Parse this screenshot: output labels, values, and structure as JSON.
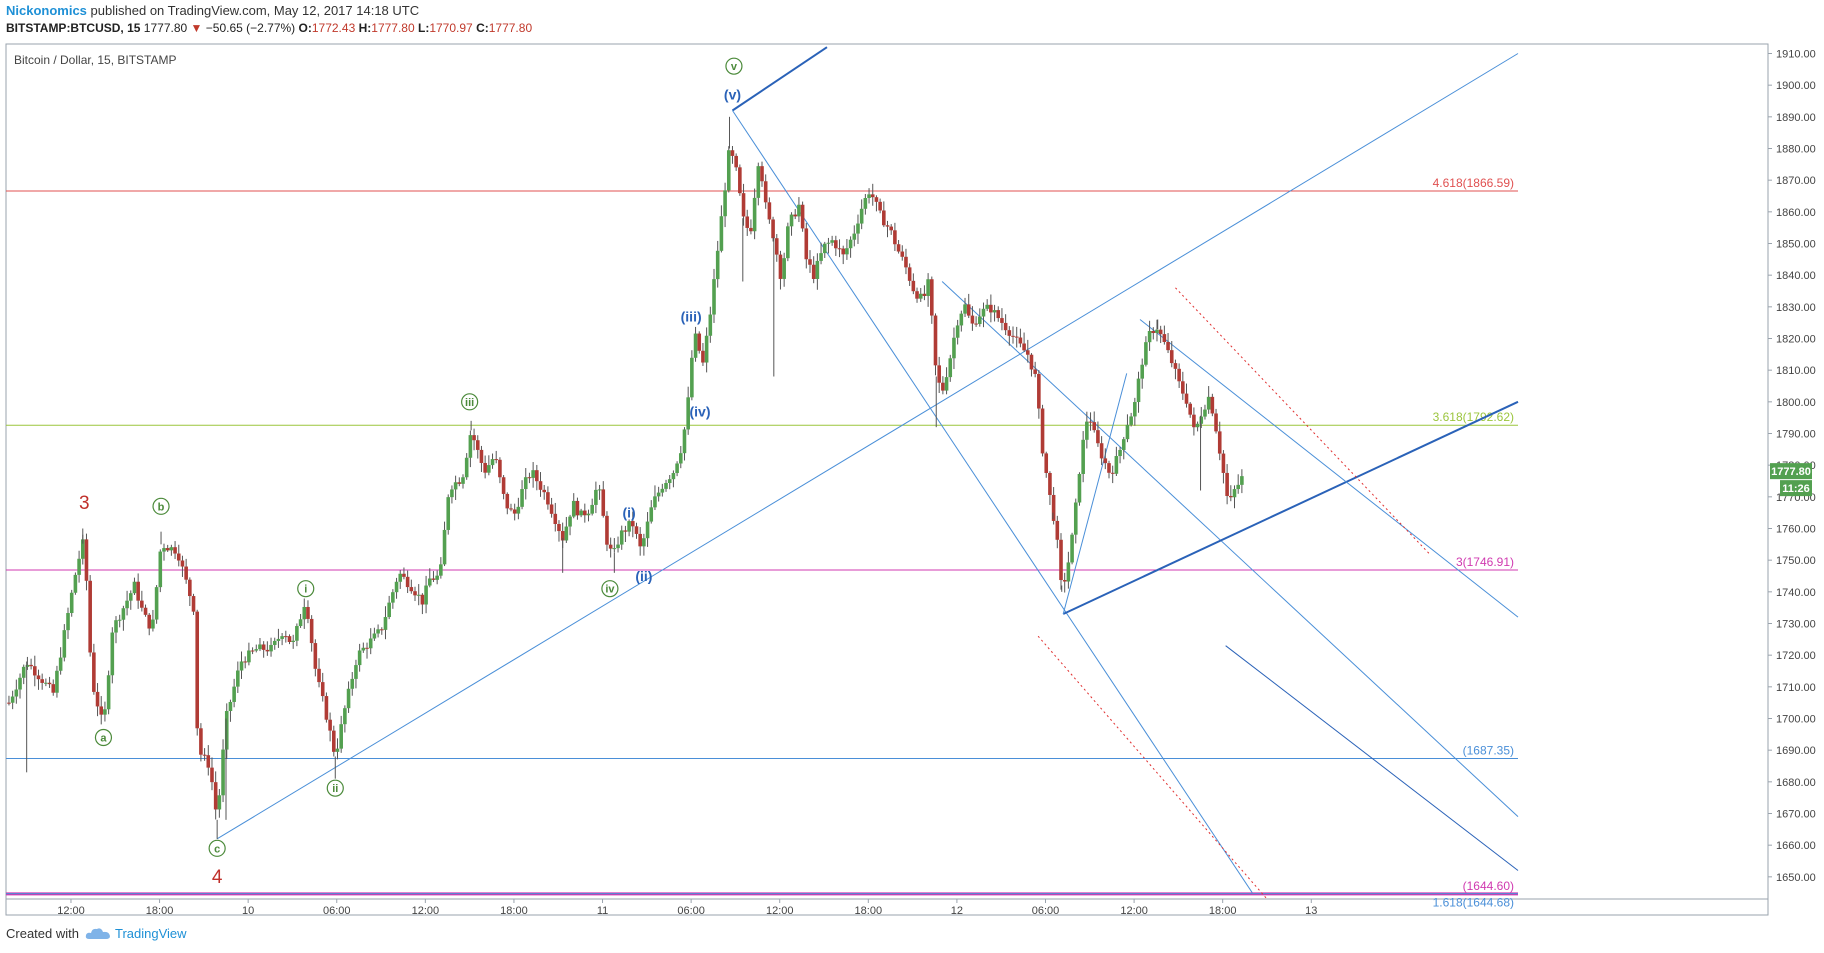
{
  "header": {
    "author": "Nickonomics",
    "published": "published on TradingView.com, May 12, 2017 14:18 UTC",
    "symbol": "BITSTAMP:BTCUSD, 15",
    "last": "1777.80",
    "change": "−50.65 (−2.77%)",
    "open": "1772.43",
    "high": "1777.80",
    "low": "1770.97",
    "close": "1777.80"
  },
  "footer": {
    "created_with": "Created with",
    "brand": "TradingView"
  },
  "colors": {
    "up": "#53a050",
    "down": "#b03b35",
    "wave_blue": "#2a62b8",
    "wave_green": "#4b8a3a",
    "wave_red": "#c0302b",
    "fib_red": "#e05050",
    "fib_green": "#9bc53d",
    "fib_magenta": "#d03ab0",
    "fib_blue": "#4a8fd8",
    "fib_purple": "#7e3fc2"
  },
  "chart_data": {
    "type": "candlestick",
    "title": "Bitcoin / Dollar, 15, BITSTAMP",
    "x_axis": {
      "unit": "hours since May 9 00:00 UTC",
      "range": [
        7.6,
        110
      ],
      "ticks": [
        {
          "x": 12,
          "label": "12:00"
        },
        {
          "x": 18,
          "label": "18:00"
        },
        {
          "x": 24,
          "label": "10"
        },
        {
          "x": 30,
          "label": "06:00"
        },
        {
          "x": 36,
          "label": "12:00"
        },
        {
          "x": 42,
          "label": "18:00"
        },
        {
          "x": 48,
          "label": "11"
        },
        {
          "x": 54,
          "label": "06:00"
        },
        {
          "x": 60,
          "label": "12:00"
        },
        {
          "x": 66,
          "label": "18:00"
        },
        {
          "x": 72,
          "label": "12"
        },
        {
          "x": 78,
          "label": "06:00"
        },
        {
          "x": 84,
          "label": "12:00"
        },
        {
          "x": 90,
          "label": "18:00"
        },
        {
          "x": 96,
          "label": "13"
        }
      ]
    },
    "y_axis": {
      "range": [
        1643,
        1913
      ],
      "ticks": [
        1650,
        1660,
        1670,
        1680,
        1690,
        1700,
        1710,
        1720,
        1730,
        1740,
        1750,
        1760,
        1770,
        1780,
        1790,
        1800,
        1810,
        1820,
        1830,
        1840,
        1850,
        1860,
        1870,
        1880,
        1890,
        1900,
        1910
      ]
    },
    "price_tag": {
      "value": 1777.8,
      "label": "1777.80",
      "countdown": "11:26"
    },
    "anchors": [
      [
        7.8,
        1705
      ],
      [
        9.0,
        1718
      ],
      [
        10.8,
        1708
      ],
      [
        12.4,
        1748
      ],
      [
        12.9,
        1757
      ],
      [
        13.4,
        1712
      ],
      [
        14.2,
        1697
      ],
      [
        14.8,
        1728
      ],
      [
        16.3,
        1742
      ],
      [
        16.9,
        1733
      ],
      [
        17.5,
        1728
      ],
      [
        18.1,
        1755
      ],
      [
        19.2,
        1753
      ],
      [
        20.3,
        1735
      ],
      [
        20.6,
        1690
      ],
      [
        21.4,
        1685
      ],
      [
        21.9,
        1668
      ],
      [
        22.5,
        1700
      ],
      [
        23.5,
        1718
      ],
      [
        24.6,
        1722
      ],
      [
        25.6,
        1722
      ],
      [
        26.4,
        1728
      ],
      [
        27.0,
        1723
      ],
      [
        27.9,
        1738
      ],
      [
        28.6,
        1714
      ],
      [
        29.2,
        1703
      ],
      [
        29.9,
        1688
      ],
      [
        30.5,
        1702
      ],
      [
        31.4,
        1720
      ],
      [
        33.0,
        1728
      ],
      [
        34.2,
        1746
      ],
      [
        35.0,
        1742
      ],
      [
        35.8,
        1737
      ],
      [
        36.3,
        1744
      ],
      [
        37.0,
        1745
      ],
      [
        37.6,
        1773
      ],
      [
        38.5,
        1776
      ],
      [
        39.1,
        1791
      ],
      [
        39.5,
        1785
      ],
      [
        40.0,
        1778
      ],
      [
        40.7,
        1783
      ],
      [
        41.4,
        1768
      ],
      [
        42.0,
        1764
      ],
      [
        42.7,
        1774
      ],
      [
        43.2,
        1778
      ],
      [
        44.2,
        1770
      ],
      [
        45.3,
        1757
      ],
      [
        46.0,
        1768
      ],
      [
        46.5,
        1764
      ],
      [
        47.1,
        1766
      ],
      [
        47.7,
        1774
      ],
      [
        48.3,
        1756
      ],
      [
        48.7,
        1751
      ],
      [
        49.2,
        1758
      ],
      [
        50.0,
        1762
      ],
      [
        50.6,
        1753
      ],
      [
        51.4,
        1768
      ],
      [
        52.1,
        1774
      ],
      [
        52.8,
        1778
      ],
      [
        53.3,
        1785
      ],
      [
        53.7,
        1795
      ],
      [
        54.2,
        1822
      ],
      [
        54.8,
        1812
      ],
      [
        55.3,
        1828
      ],
      [
        56.0,
        1856
      ],
      [
        56.6,
        1880
      ],
      [
        57.1,
        1872
      ],
      [
        57.5,
        1858
      ],
      [
        58.0,
        1853
      ],
      [
        58.6,
        1878
      ],
      [
        59.1,
        1860
      ],
      [
        59.6,
        1852
      ],
      [
        60.1,
        1839
      ],
      [
        60.6,
        1856
      ],
      [
        61.3,
        1862
      ],
      [
        61.8,
        1845
      ],
      [
        62.3,
        1840
      ],
      [
        63.0,
        1849
      ],
      [
        63.6,
        1851
      ],
      [
        64.3,
        1846
      ],
      [
        65.0,
        1853
      ],
      [
        65.6,
        1862
      ],
      [
        66.1,
        1867
      ],
      [
        66.8,
        1859
      ],
      [
        67.5,
        1854
      ],
      [
        68.0,
        1848
      ],
      [
        68.5,
        1843
      ],
      [
        69.1,
        1835
      ],
      [
        69.7,
        1832
      ],
      [
        70.1,
        1838
      ],
      [
        70.6,
        1808
      ],
      [
        71.0,
        1803
      ],
      [
        71.5,
        1813
      ],
      [
        72.0,
        1825
      ],
      [
        72.5,
        1831
      ],
      [
        73.0,
        1824
      ],
      [
        73.6,
        1828
      ],
      [
        74.2,
        1830
      ],
      [
        74.9,
        1826
      ],
      [
        75.6,
        1822
      ],
      [
        76.2,
        1818
      ],
      [
        76.8,
        1815
      ],
      [
        77.3,
        1808
      ],
      [
        77.8,
        1785
      ],
      [
        78.3,
        1770
      ],
      [
        78.7,
        1760
      ],
      [
        79.1,
        1740
      ],
      [
        79.5,
        1748
      ],
      [
        79.9,
        1760
      ],
      [
        80.4,
        1783
      ],
      [
        80.9,
        1797
      ],
      [
        81.4,
        1788
      ],
      [
        81.9,
        1782
      ],
      [
        82.4,
        1777
      ],
      [
        83.0,
        1784
      ],
      [
        83.5,
        1793
      ],
      [
        84.0,
        1798
      ],
      [
        84.5,
        1812
      ],
      [
        85.0,
        1821
      ],
      [
        85.5,
        1824
      ],
      [
        86.0,
        1819
      ],
      [
        86.6,
        1812
      ],
      [
        87.1,
        1805
      ],
      [
        87.6,
        1800
      ],
      [
        88.1,
        1790
      ],
      [
        88.6,
        1797
      ],
      [
        89.1,
        1802
      ],
      [
        89.5,
        1793
      ],
      [
        90.0,
        1779
      ],
      [
        90.4,
        1767
      ],
      [
        90.8,
        1772
      ],
      [
        91.2,
        1775
      ],
      [
        91.5,
        1777.8
      ]
    ],
    "wicks": [
      {
        "x": 9.0,
        "low": 1683
      },
      {
        "x": 12.8,
        "high": 1760
      },
      {
        "x": 14.2,
        "low": 1697
      },
      {
        "x": 18.1,
        "high": 1759
      },
      {
        "x": 21.9,
        "low": 1662
      },
      {
        "x": 22.5,
        "low": 1668
      },
      {
        "x": 29.9,
        "low": 1681
      },
      {
        "x": 39.1,
        "high": 1794
      },
      {
        "x": 45.3,
        "low": 1746
      },
      {
        "x": 48.8,
        "low": 1746
      },
      {
        "x": 56.6,
        "high": 1890
      },
      {
        "x": 57.5,
        "low": 1838
      },
      {
        "x": 59.6,
        "low": 1808
      },
      {
        "x": 70.6,
        "low": 1792
      },
      {
        "x": 78.5,
        "low": 1763
      },
      {
        "x": 79.1,
        "low": 1742
      },
      {
        "x": 88.5,
        "low": 1772
      },
      {
        "x": 85.6,
        "high": 1826
      }
    ],
    "horizontal_levels": [
      {
        "price": 1866.59,
        "label": "4.618(1866.59)",
        "color": "#e05050"
      },
      {
        "price": 1792.62,
        "label": "3.618(1792.62)",
        "color": "#9bc53d"
      },
      {
        "price": 1746.91,
        "label": "3(1746.91)",
        "color": "#d03ab0"
      },
      {
        "price": 1687.35,
        "label": "(1687.35)",
        "color": "#4a8fd8"
      },
      {
        "price": 1644.6,
        "label": "(1644.60)",
        "color": "#d03ab0"
      },
      {
        "price": 1644.68,
        "label": "1.618(1644.68)",
        "color": "#4a8fd8"
      }
    ],
    "trend_lines": [
      {
        "from": [
          21.9,
          1662
        ],
        "to": [
          110,
          1910
        ],
        "color": "#4a8fd8",
        "width": 1
      },
      {
        "from": [
          56.8,
          1892
        ],
        "to": [
          63.2,
          1912
        ],
        "color": "#2a62b8",
        "width": 2
      },
      {
        "from": [
          56.8,
          1892
        ],
        "to": [
          92.0,
          1645
        ],
        "color": "#4a8fd8",
        "width": 1
      },
      {
        "from": [
          71.0,
          1838
        ],
        "to": [
          110,
          1669
        ],
        "color": "#4a8fd8",
        "width": 1
      },
      {
        "from": [
          79.2,
          1733
        ],
        "to": [
          110,
          1800
        ],
        "color": "#2a62b8",
        "width": 2
      },
      {
        "from": [
          79.2,
          1733
        ],
        "to": [
          83.5,
          1809
        ],
        "color": "#4a8fd8",
        "width": 1
      },
      {
        "from": [
          84.4,
          1826
        ],
        "to": [
          110,
          1732
        ],
        "color": "#4a8fd8",
        "width": 1
      },
      {
        "from": [
          90.2,
          1723
        ],
        "to": [
          110,
          1652
        ],
        "color": "#2a62b8",
        "width": 1
      }
    ],
    "dotted_lines": [
      {
        "from": [
          86.8,
          1836
        ],
        "to": [
          104,
          1752
        ],
        "color": "#e03030"
      },
      {
        "from": [
          77.5,
          1726
        ],
        "to": [
          93.0,
          1643
        ],
        "color": "#e03030"
      }
    ],
    "annotations": [
      {
        "x": 12.9,
        "y": 1768,
        "text": "3",
        "style": "red"
      },
      {
        "x": 18.1,
        "y": 1767,
        "text": "b",
        "style": "circle-green"
      },
      {
        "x": 14.2,
        "y": 1694,
        "text": "a",
        "style": "circle-green"
      },
      {
        "x": 21.9,
        "y": 1659,
        "text": "c",
        "style": "circle-green"
      },
      {
        "x": 21.9,
        "y": 1650,
        "text": "4",
        "style": "red"
      },
      {
        "x": 27.9,
        "y": 1741,
        "text": "i",
        "style": "circle-green"
      },
      {
        "x": 29.9,
        "y": 1678,
        "text": "ii",
        "style": "circle-green"
      },
      {
        "x": 39.0,
        "y": 1800,
        "text": "iii",
        "style": "circle-green"
      },
      {
        "x": 48.5,
        "y": 1741,
        "text": "iv",
        "style": "circle-green"
      },
      {
        "x": 56.9,
        "y": 1906,
        "text": "v",
        "style": "circle-green"
      },
      {
        "x": 56.8,
        "y": 1897,
        "text": "(v)",
        "style": "blue"
      },
      {
        "x": 54.0,
        "y": 1827,
        "text": "(iii)",
        "style": "blue"
      },
      {
        "x": 54.6,
        "y": 1797,
        "text": "(iv)",
        "style": "blue"
      },
      {
        "x": 49.8,
        "y": 1765,
        "text": "(i)",
        "style": "blue"
      },
      {
        "x": 50.8,
        "y": 1745,
        "text": "(ii)",
        "style": "blue"
      }
    ]
  }
}
